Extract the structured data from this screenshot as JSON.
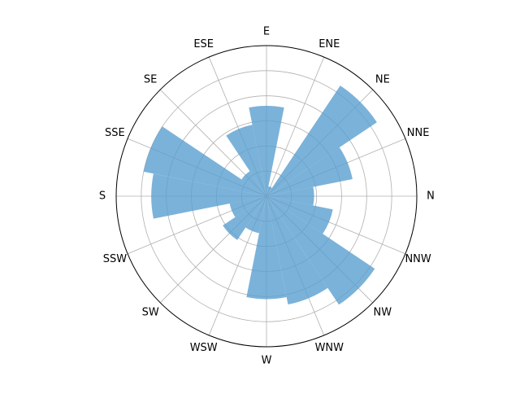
{
  "chart_data": {
    "type": "bar",
    "subtype": "polar-rose",
    "title": "",
    "directions": [
      "N",
      "NNE",
      "NE",
      "ENE",
      "E",
      "ESE",
      "SE",
      "SSE",
      "S",
      "SSW",
      "SW",
      "WSW",
      "W",
      "WNW",
      "NW",
      "NNW"
    ],
    "series": [
      {
        "values": [
          1.9,
          3.5,
          5.3,
          0.4,
          3.6,
          2.9,
          1.2,
          5.0,
          4.6,
          1.5,
          2.1,
          1.5,
          4.1,
          4.4,
          5.2,
          2.7
        ]
      }
    ],
    "rlim": [
      0,
      6
    ],
    "radial_gridlines": [
      1,
      2,
      3,
      4,
      5
    ],
    "angular_gridlines": 16,
    "radial_tick_labels_shown": false,
    "grid": true,
    "bar_color": "#5a9fcf",
    "bar_alpha": 0.8
  }
}
